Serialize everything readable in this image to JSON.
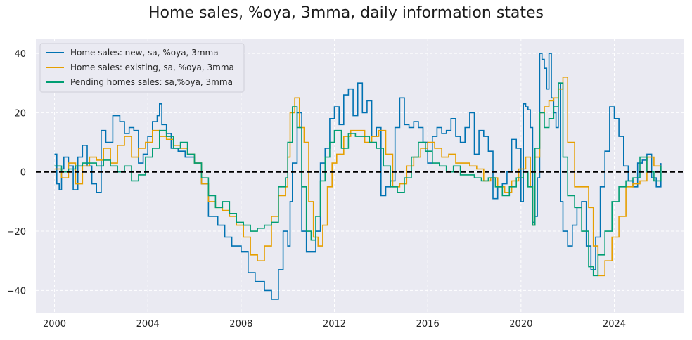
{
  "chart_data": {
    "type": "line",
    "title": "Home sales, %oya, 3mma, daily information states",
    "xlabel": "",
    "ylabel": "",
    "xlim": [
      1999.2,
      2027.0
    ],
    "ylim": [
      -47.5,
      45
    ],
    "x_ticks": [
      2000,
      2004,
      2008,
      2012,
      2016,
      2020,
      2024
    ],
    "x_tick_labels": [
      "2000",
      "2004",
      "2008",
      "2012",
      "2016",
      "2020",
      "2024"
    ],
    "y_ticks": [
      -40,
      -20,
      0,
      20,
      40
    ],
    "y_tick_labels": [
      "−40",
      "−20",
      "0",
      "20",
      "40"
    ],
    "grid": true,
    "legend_position": "top-left",
    "reference_line": {
      "y": 0,
      "style": "dashed",
      "color": "#000000"
    },
    "series": [
      {
        "name": "Home sales: new, sa, %oya, 3mma",
        "color": "#0072B2",
        "x": [
          2000.0,
          2000.1,
          2000.2,
          2000.3,
          2000.4,
          2000.6,
          2000.8,
          2001.0,
          2001.2,
          2001.4,
          2001.6,
          2001.8,
          2002.0,
          2002.2,
          2002.5,
          2002.8,
          2003.0,
          2003.2,
          2003.4,
          2003.6,
          2003.8,
          2004.0,
          2004.2,
          2004.4,
          2004.5,
          2004.6,
          2004.8,
          2005.0,
          2005.3,
          2005.6,
          2006.0,
          2006.3,
          2006.6,
          2007.0,
          2007.3,
          2007.6,
          2008.0,
          2008.3,
          2008.6,
          2009.0,
          2009.3,
          2009.6,
          2009.8,
          2010.0,
          2010.1,
          2010.2,
          2010.4,
          2010.6,
          2010.8,
          2011.0,
          2011.2,
          2011.4,
          2011.6,
          2011.8,
          2012.0,
          2012.2,
          2012.4,
          2012.6,
          2012.8,
          2013.0,
          2013.2,
          2013.4,
          2013.6,
          2013.8,
          2014.0,
          2014.2,
          2014.4,
          2014.6,
          2014.8,
          2015.0,
          2015.2,
          2015.4,
          2015.6,
          2015.8,
          2016.0,
          2016.2,
          2016.4,
          2016.6,
          2016.8,
          2017.0,
          2017.2,
          2017.4,
          2017.6,
          2017.8,
          2018.0,
          2018.2,
          2018.4,
          2018.6,
          2018.8,
          2019.0,
          2019.2,
          2019.4,
          2019.6,
          2019.8,
          2020.0,
          2020.1,
          2020.2,
          2020.3,
          2020.4,
          2020.5,
          2020.6,
          2020.7,
          2020.8,
          2020.9,
          2021.0,
          2021.1,
          2021.2,
          2021.3,
          2021.4,
          2021.5,
          2021.6,
          2021.7,
          2021.8,
          2022.0,
          2022.2,
          2022.4,
          2022.6,
          2022.8,
          2023.0,
          2023.2,
          2023.4,
          2023.6,
          2023.8,
          2024.0,
          2024.2,
          2024.4,
          2024.6,
          2024.8,
          2025.0,
          2025.2,
          2025.4,
          2025.6,
          2025.8,
          2026.0
        ],
        "values": [
          6,
          -4,
          -6,
          1,
          5,
          2,
          -6,
          5,
          9,
          2,
          -4,
          -7,
          14,
          10,
          19,
          17,
          13,
          15,
          14,
          3,
          6,
          12,
          17,
          19,
          23,
          16,
          13,
          8,
          7,
          5,
          3,
          -4,
          -15,
          -18,
          -22,
          -25,
          -27,
          -34,
          -37,
          -40,
          -43,
          -33,
          -20,
          -25,
          -10,
          3,
          20,
          -20,
          -27,
          -27,
          -20,
          3,
          8,
          18,
          22,
          16,
          26,
          28,
          19,
          30,
          20,
          24,
          12,
          15,
          -8,
          -5,
          -3,
          15,
          25,
          16,
          15,
          17,
          15,
          10,
          3,
          12,
          15,
          13,
          14,
          18,
          12,
          10,
          15,
          20,
          6,
          14,
          12,
          7,
          -9,
          -5,
          -4,
          0,
          11,
          8,
          -10,
          23,
          22,
          21,
          15,
          -17,
          -15,
          -2,
          40,
          38,
          35,
          28,
          40,
          25,
          20,
          15,
          30,
          -10,
          -20,
          -25,
          -18,
          -12,
          -10,
          -25,
          -33,
          -22,
          -5,
          7,
          22,
          18,
          12,
          2,
          -3,
          -5,
          3,
          4,
          6,
          -2,
          -5,
          3
        ]
      },
      {
        "name": "Home sales: existing, sa, %oya, 3mma",
        "color": "#E69F00",
        "x": [
          2000.0,
          2000.3,
          2000.6,
          2000.9,
          2001.2,
          2001.5,
          2001.8,
          2002.1,
          2002.4,
          2002.7,
          2003.0,
          2003.3,
          2003.6,
          2003.9,
          2004.2,
          2004.5,
          2004.8,
          2005.1,
          2005.4,
          2005.7,
          2006.0,
          2006.3,
          2006.6,
          2006.9,
          2007.2,
          2007.5,
          2007.8,
          2008.1,
          2008.4,
          2008.7,
          2009.0,
          2009.3,
          2009.6,
          2009.9,
          2010.0,
          2010.1,
          2010.3,
          2010.5,
          2010.7,
          2010.9,
          2011.1,
          2011.3,
          2011.5,
          2011.7,
          2011.9,
          2012.1,
          2012.4,
          2012.7,
          2013.0,
          2013.3,
          2013.6,
          2013.9,
          2014.2,
          2014.5,
          2014.8,
          2015.1,
          2015.4,
          2015.7,
          2016.0,
          2016.3,
          2016.6,
          2016.9,
          2017.2,
          2017.5,
          2017.8,
          2018.1,
          2018.4,
          2018.7,
          2019.0,
          2019.3,
          2019.6,
          2019.9,
          2020.2,
          2020.4,
          2020.5,
          2020.6,
          2020.8,
          2021.0,
          2021.2,
          2021.4,
          2021.6,
          2021.8,
          2022.0,
          2022.3,
          2022.6,
          2022.9,
          2023.1,
          2023.3,
          2023.6,
          2023.9,
          2024.2,
          2024.5,
          2024.8,
          2025.1,
          2025.4,
          2025.7,
          2026.0
        ],
        "values": [
          1,
          -2,
          3,
          -4,
          2,
          5,
          4,
          8,
          3,
          9,
          12,
          5,
          8,
          10,
          14,
          12,
          11,
          9,
          8,
          6,
          3,
          -4,
          -10,
          -12,
          -13,
          -15,
          -18,
          -22,
          -28,
          -30,
          -25,
          -15,
          -8,
          -5,
          5,
          20,
          25,
          15,
          10,
          -10,
          -22,
          -25,
          -18,
          -5,
          3,
          6,
          12,
          14,
          14,
          10,
          12,
          14,
          6,
          -5,
          -4,
          2,
          5,
          8,
          10,
          8,
          5,
          6,
          3,
          3,
          2,
          1,
          -3,
          -2,
          -5,
          -7,
          -3,
          1,
          5,
          -5,
          -18,
          5,
          20,
          22,
          24,
          25,
          28,
          32,
          10,
          -5,
          -5,
          -12,
          -25,
          -35,
          -30,
          -22,
          -15,
          -5,
          -4,
          -3,
          5,
          2,
          2
        ]
      },
      {
        "name": "Pending homes sales: sa,%oya, 3mma",
        "color": "#009E73",
        "x": [
          2000.0,
          2000.3,
          2000.6,
          2000.9,
          2001.2,
          2001.5,
          2001.8,
          2002.1,
          2002.4,
          2002.7,
          2003.0,
          2003.3,
          2003.6,
          2003.9,
          2004.2,
          2004.5,
          2004.8,
          2005.1,
          2005.4,
          2005.7,
          2006.0,
          2006.3,
          2006.6,
          2006.9,
          2007.2,
          2007.5,
          2007.8,
          2008.1,
          2008.4,
          2008.7,
          2009.0,
          2009.3,
          2009.6,
          2009.9,
          2010.0,
          2010.2,
          2010.4,
          2010.6,
          2010.8,
          2011.0,
          2011.2,
          2011.4,
          2011.6,
          2011.8,
          2012.0,
          2012.3,
          2012.6,
          2012.9,
          2013.2,
          2013.5,
          2013.8,
          2014.1,
          2014.4,
          2014.7,
          2015.0,
          2015.3,
          2015.6,
          2015.9,
          2016.2,
          2016.5,
          2016.8,
          2017.1,
          2017.4,
          2017.7,
          2018.0,
          2018.3,
          2018.6,
          2018.9,
          2019.2,
          2019.5,
          2019.8,
          2020.1,
          2020.3,
          2020.5,
          2020.6,
          2020.8,
          2021.0,
          2021.2,
          2021.4,
          2021.6,
          2021.8,
          2022.0,
          2022.3,
          2022.6,
          2022.9,
          2023.1,
          2023.3,
          2023.6,
          2023.9,
          2024.2,
          2024.5,
          2024.8,
          2025.1,
          2025.4,
          2025.7,
          2026.0
        ],
        "values": [
          2,
          0,
          1,
          2,
          3,
          3,
          2,
          4,
          2,
          0,
          2,
          -3,
          -1,
          5,
          8,
          14,
          12,
          8,
          10,
          6,
          3,
          -2,
          -8,
          -12,
          -10,
          -14,
          -17,
          -18,
          -20,
          -19,
          -18,
          -17,
          -5,
          -2,
          10,
          22,
          15,
          -5,
          -20,
          -23,
          -15,
          -3,
          5,
          10,
          14,
          8,
          13,
          12,
          12,
          10,
          8,
          2,
          -5,
          -7,
          -2,
          5,
          10,
          7,
          3,
          2,
          0,
          2,
          -1,
          -1,
          -2,
          -3,
          -2,
          -5,
          -8,
          -5,
          -2,
          0,
          -5,
          -18,
          8,
          20,
          15,
          18,
          22,
          30,
          5,
          -8,
          -12,
          -20,
          -32,
          -35,
          -28,
          -20,
          -10,
          -5,
          -3,
          -2,
          5,
          0,
          -3,
          2
        ]
      }
    ],
    "legend": [
      "Home sales: new, sa, %oya, 3mma",
      "Home sales: existing, sa, %oya, 3mma",
      "Pending homes sales: sa,%oya, 3mma"
    ]
  }
}
